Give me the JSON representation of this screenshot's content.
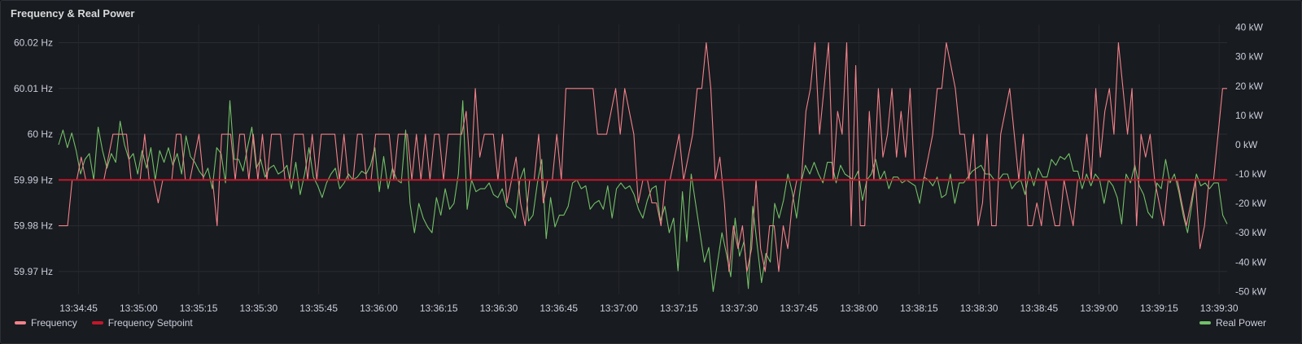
{
  "panel": {
    "title": "Frequency & Real Power"
  },
  "legend": [
    {
      "name": "Frequency",
      "color": "#f2818a"
    },
    {
      "name": "Frequency Setpoint",
      "color": "#c4162a"
    }
  ],
  "legend_right": [
    {
      "name": "Real Power",
      "color": "#73bf69"
    }
  ],
  "chart_data": {
    "type": "line",
    "title": "Frequency & Real Power",
    "x_ticks": [
      "13:34:45",
      "13:35:00",
      "13:35:15",
      "13:35:30",
      "13:35:45",
      "13:36:00",
      "13:36:15",
      "13:36:30",
      "13:36:45",
      "13:37:00",
      "13:37:15",
      "13:37:30",
      "13:37:45",
      "13:38:00",
      "13:38:15",
      "13:38:30",
      "13:38:45",
      "13:39:00",
      "13:39:15",
      "13:39:30"
    ],
    "x_range": [
      "13:34:40",
      "13:39:32"
    ],
    "y_left": {
      "unit": "Hz",
      "ylim": [
        59.965,
        60.024
      ],
      "ticks": [
        "59.97 Hz",
        "59.98 Hz",
        "59.99 Hz",
        "60 Hz",
        "60.01 Hz",
        "60.02 Hz"
      ]
    },
    "y_right": {
      "unit": "kW",
      "ylim": [
        -51,
        41
      ],
      "ticks": [
        "-50 kW",
        "-40 kW",
        "-30 kW",
        "-20 kW",
        "-10 kW",
        "0 kW",
        "10 kW",
        "20 kW",
        "30 kW",
        "40 kW"
      ]
    },
    "grid": true,
    "legend_position": "bottom",
    "series": [
      {
        "name": "Frequency",
        "axis": "left",
        "color": "#f2818a",
        "values": [
          59.98,
          59.98,
          59.98,
          59.99,
          59.99,
          59.995,
          59.99,
          59.99,
          59.99,
          59.99,
          59.99,
          59.995,
          60,
          60,
          60,
          60,
          59.99,
          59.99,
          59.99,
          60,
          59.99,
          59.99,
          59.985,
          59.99,
          59.99,
          59.99,
          60,
          60,
          59.99,
          59.99,
          59.995,
          60,
          59.99,
          59.99,
          59.99,
          59.98,
          60,
          60,
          60,
          59.99,
          60,
          60,
          59.99,
          60,
          59.99,
          60,
          59.99,
          60,
          60,
          60,
          59.99,
          59.99,
          60,
          60,
          60,
          59.99,
          60,
          59.99,
          60,
          60,
          60,
          60,
          59.99,
          60,
          59.99,
          59.99,
          60,
          60,
          59.99,
          59.99,
          60,
          60,
          60,
          60,
          59.99,
          60,
          60,
          60,
          59.99,
          60,
          59.99,
          60,
          59.99,
          60,
          60,
          59.99,
          60,
          60,
          60,
          60,
          60.005,
          59.99,
          60.01,
          59.995,
          60,
          60,
          60,
          59.99,
          60,
          59.985,
          59.99,
          59.995,
          59.985,
          59.98,
          59.99,
          59.99,
          60,
          59.985,
          59.99,
          59.99,
          60,
          59.99,
          60.01,
          60.01,
          60.01,
          60.01,
          60.01,
          60.01,
          60.01,
          60,
          60,
          60,
          60.005,
          60.01,
          60,
          60.01,
          60.005,
          60,
          59.985,
          59.99,
          59.99,
          59.985,
          59.985,
          59.98,
          59.99,
          59.99,
          59.995,
          60,
          59.99,
          59.995,
          60,
          60.01,
          60.01,
          60.02,
          60.01,
          59.99,
          59.995,
          59.985,
          59.97,
          59.98,
          59.975,
          59.98,
          59.97,
          59.975,
          59.99,
          59.975,
          59.97,
          59.98,
          59.98,
          59.97,
          59.98,
          59.975,
          59.985,
          59.99,
          59.99,
          60.005,
          60.01,
          60.02,
          60,
          60.01,
          60.02,
          59.99,
          60.005,
          60,
          60.02,
          59.98,
          60.015,
          59.98,
          59.98,
          60.005,
          59.99,
          60.01,
          59.995,
          60,
          60.01,
          59.995,
          60.005,
          59.995,
          60.01,
          59.99,
          59.99,
          59.99,
          59.995,
          60,
          60.01,
          60.01,
          60.02,
          60.015,
          60.01,
          60,
          60,
          59.99,
          60,
          59.98,
          59.985,
          60,
          59.98,
          59.98,
          60,
          60.005,
          60.01,
          60,
          59.99,
          60,
          59.98,
          59.98,
          59.985,
          59.98,
          59.99,
          59.985,
          59.98,
          59.98,
          59.99,
          59.985,
          59.98,
          59.99,
          59.99,
          60,
          59.99,
          60.01,
          59.995,
          60.005,
          60.01,
          60,
          60.02,
          60.01,
          60,
          60.01,
          59.98,
          60,
          59.995,
          60,
          59.99,
          59.985,
          59.98,
          59.99,
          59.99,
          59.99,
          59.985,
          59.98,
          59.985,
          59.99,
          59.975,
          59.98,
          59.99,
          59.99,
          60,
          60.01,
          60.01
        ]
      },
      {
        "name": "Frequency Setpoint",
        "axis": "left",
        "color": "#c4162a",
        "x": [
          "13:34:40",
          "13:39:32"
        ],
        "values": [
          59.99,
          59.99
        ]
      },
      {
        "name": "Real Power",
        "axis": "right",
        "color": "#73bf69",
        "values": [
          0,
          5,
          -1,
          4,
          -2,
          -10,
          -5,
          -3,
          -12,
          6,
          -2,
          -8,
          -3,
          -6,
          8,
          0,
          -5,
          -3,
          -10,
          -2,
          -8,
          -1,
          -12,
          -2,
          -6,
          -1,
          -7,
          -3,
          -10,
          3,
          -4,
          -6,
          -9,
          -11,
          -8,
          -15,
          -1,
          -3,
          -13,
          15,
          -5,
          -5,
          -9,
          -1,
          6,
          -8,
          -5,
          -11,
          -8,
          -7,
          -10,
          -9,
          -7,
          -15,
          -6,
          -17,
          -10,
          -1,
          -11,
          -14,
          -18,
          -13,
          -10,
          -8,
          -15,
          -13,
          -10,
          -12,
          -11,
          -9,
          -10,
          -7,
          -1,
          -16,
          -4,
          -15,
          -8,
          -12,
          -13,
          5,
          -20,
          -30,
          -20,
          -25,
          -28,
          -30,
          -18,
          -24,
          -15,
          -22,
          -20,
          -10,
          15,
          -22,
          -12,
          -16,
          -15,
          -15,
          -13,
          -17,
          -18,
          -15,
          -21,
          -22,
          -25,
          -12,
          -8,
          -26,
          -24,
          -13,
          -5,
          -32,
          -18,
          -28,
          -24,
          -24,
          -21,
          -13,
          -12,
          -15,
          -14,
          -22,
          -20,
          -19,
          -22,
          -14,
          -25,
          -15,
          -13,
          -15,
          -14,
          -17,
          -22,
          -25,
          -19,
          -15,
          -14,
          -26,
          -21,
          -30,
          -25,
          -43,
          -16,
          -33,
          -10,
          -20,
          -30,
          -40,
          -35,
          -50,
          -40,
          -30,
          -37,
          -45,
          -25,
          -38,
          -33,
          -49,
          -21,
          -34,
          -47,
          -37,
          -40,
          -20,
          -25,
          -19,
          -10,
          -16,
          -25,
          -13,
          -7,
          -10,
          -6,
          -10,
          -13,
          -6,
          -6,
          -13,
          -7,
          -10,
          -11,
          -12,
          -9,
          -19,
          -12,
          -10,
          -5,
          -12,
          -9,
          -15,
          -11,
          -11,
          -13,
          -12,
          -13,
          -14,
          -20,
          -11,
          -12,
          -14,
          -11,
          -18,
          -17,
          -10,
          -20,
          -13,
          -13,
          -11,
          -9,
          -8,
          -7,
          -10,
          -10,
          -12,
          -12,
          -10,
          -10,
          -15,
          -13,
          -12,
          -17,
          -9,
          -14,
          -8,
          -11,
          -11,
          -5,
          -7,
          -4,
          -5,
          -3,
          -9,
          -9,
          -15,
          -10,
          -14,
          -10,
          -12,
          -20,
          -12,
          -14,
          -18,
          -27,
          -10,
          -13,
          -7,
          -14,
          -17,
          -23,
          -25,
          -13,
          -15,
          -5,
          -13,
          -10,
          -16,
          -24,
          -30,
          -20,
          -10,
          -14,
          -13,
          -15,
          -13,
          -13,
          -24,
          -27
        ]
      }
    ]
  }
}
